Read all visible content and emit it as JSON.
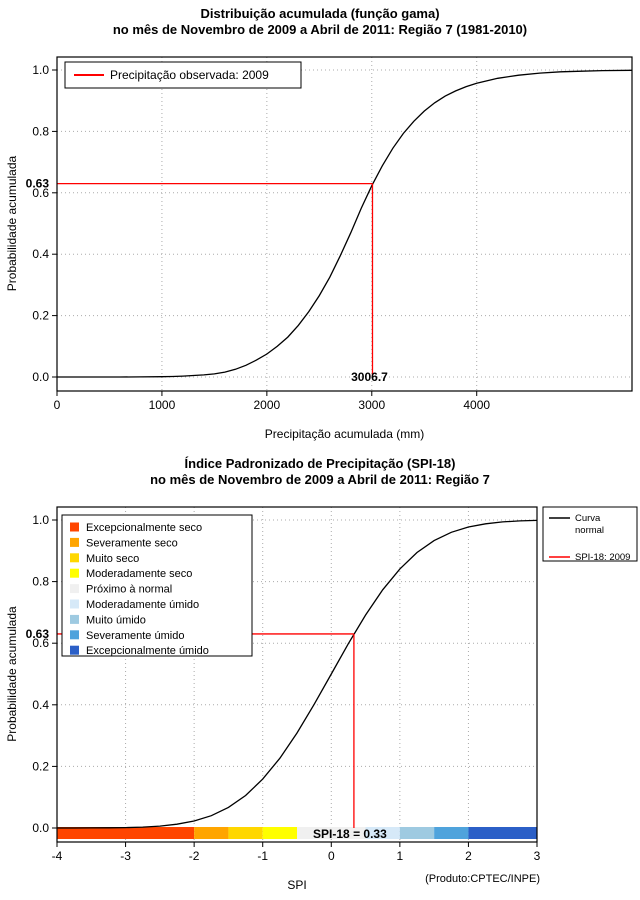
{
  "chart_data": [
    {
      "type": "line",
      "title_line1": "Distribuição acumulada (função gama)",
      "title_line2": "no mês de Novembro de 2009 a Abril de 2011: Região 7 (1981-2010)",
      "xlabel": "Precipitação acumulada (mm)",
      "ylabel": "Probabilidade acumulada",
      "xlim": [
        0,
        5480
      ],
      "ylim": [
        0,
        1
      ],
      "xticks": [
        {
          "v": 0,
          "label": "0"
        },
        {
          "v": 1000,
          "label": "1000"
        },
        {
          "v": 2000,
          "label": "2000"
        },
        {
          "v": 3000,
          "label": "3000"
        },
        {
          "v": 4000,
          "label": "4000"
        }
      ],
      "yticks": [
        {
          "v": 0,
          "label": "0.0"
        },
        {
          "v": 0.2,
          "label": "0.2"
        },
        {
          "v": 0.4,
          "label": "0.4"
        },
        {
          "v": 0.6,
          "label": "0.6"
        },
        {
          "v": 0.8,
          "label": "0.8"
        },
        {
          "v": 1,
          "label": "1.0"
        }
      ],
      "curve_color": "#000000",
      "marker_color": "#ff0000",
      "marker": {
        "x": 3006.7,
        "y": 0.63,
        "x_label": "3006.7",
        "y_label": "0.63"
      },
      "legend": [
        {
          "label": "Precipitação observada: 2009",
          "color": "#ff0000"
        }
      ],
      "curve": {
        "x": [
          0,
          200,
          400,
          600,
          800,
          1000,
          1100,
          1200,
          1300,
          1400,
          1500,
          1600,
          1700,
          1800,
          1900,
          2000,
          2100,
          2200,
          2300,
          2400,
          2500,
          2600,
          2700,
          2800,
          2900,
          3000,
          3100,
          3200,
          3300,
          3400,
          3500,
          3600,
          3700,
          3800,
          3900,
          4000,
          4200,
          4400,
          4600,
          4800,
          5000,
          5200,
          5480
        ],
        "y": [
          0,
          0,
          0,
          0.0001,
          0.0003,
          0.001,
          0.0017,
          0.003,
          0.005,
          0.007,
          0.01,
          0.016,
          0.025,
          0.038,
          0.055,
          0.075,
          0.1,
          0.13,
          0.168,
          0.213,
          0.265,
          0.325,
          0.395,
          0.47,
          0.55,
          0.623,
          0.688,
          0.745,
          0.793,
          0.833,
          0.866,
          0.893,
          0.915,
          0.932,
          0.946,
          0.957,
          0.973,
          0.983,
          0.99,
          0.994,
          0.996,
          0.998,
          0.999
        ]
      }
    },
    {
      "type": "line",
      "title_line1": "Índice Padronizado de Precipitação (SPI-18)",
      "title_line2": "no mês de Novembro de 2009 a Abril de 2011: Região 7",
      "xlabel": "SPI",
      "ylabel": "Probabilidade acumulada",
      "credit": "(Produto:CPTEC/INPE)",
      "annotation": "SPI-18 = 0.33",
      "xlim": [
        -4,
        3
      ],
      "ylim": [
        0,
        1
      ],
      "xticks": [
        {
          "v": -4,
          "label": "-4"
        },
        {
          "v": -3,
          "label": "-3"
        },
        {
          "v": -2,
          "label": "-2"
        },
        {
          "v": -1,
          "label": "-1"
        },
        {
          "v": 0,
          "label": "0"
        },
        {
          "v": 1,
          "label": "1"
        },
        {
          "v": 2,
          "label": "2"
        },
        {
          "v": 3,
          "label": "3"
        }
      ],
      "yticks": [
        {
          "v": 0,
          "label": "0.0"
        },
        {
          "v": 0.2,
          "label": "0.2"
        },
        {
          "v": 0.4,
          "label": "0.4"
        },
        {
          "v": 0.6,
          "label": "0.6"
        },
        {
          "v": 0.8,
          "label": "0.8"
        },
        {
          "v": 1,
          "label": "1.0"
        }
      ],
      "curve_color": "#000000",
      "marker_color": "#ff0000",
      "marker": {
        "x": 0.33,
        "y": 0.63,
        "y_label": "0.63"
      },
      "legend_categories": [
        {
          "label": "Excepcionalmente seco",
          "color": "#FF4500",
          "range": [
            -4,
            -2
          ]
        },
        {
          "label": "Severamente seco",
          "color": "#FFA500",
          "range": [
            -2,
            -1.5
          ]
        },
        {
          "label": "Muito seco",
          "color": "#FFD700",
          "range": [
            -1.5,
            -1
          ]
        },
        {
          "label": "Moderadamente seco",
          "color": "#FFFF00",
          "range": [
            -1,
            -0.5
          ]
        },
        {
          "label": "Próximo à normal",
          "color": "#F0F0F0",
          "range": [
            -0.5,
            0.5
          ]
        },
        {
          "label": "Moderadamente úmido",
          "color": "#D6E9F8",
          "range": [
            0.5,
            1
          ]
        },
        {
          "label": "Muito úmido",
          "color": "#9ECAE1",
          "range": [
            1,
            1.5
          ]
        },
        {
          "label": "Severamente úmido",
          "color": "#4FA3DC",
          "range": [
            1.5,
            2
          ]
        },
        {
          "label": "Excepcionalmente úmido",
          "color": "#2B5FC7",
          "range": [
            2,
            3
          ]
        }
      ],
      "legend_lines": [
        {
          "label": "Curva\nnormal",
          "color": "#000000"
        },
        {
          "label": "SPI-18: 2009",
          "color": "#ff0000"
        }
      ],
      "curve": {
        "x": [
          -4,
          -3.75,
          -3.5,
          -3.25,
          -3,
          -2.75,
          -2.5,
          -2.25,
          -2,
          -1.75,
          -1.5,
          -1.25,
          -1,
          -0.75,
          -0.5,
          -0.25,
          0,
          0.25,
          0.5,
          0.75,
          1,
          1.25,
          1.5,
          1.75,
          2,
          2.25,
          2.5,
          2.75,
          3
        ],
        "y": [
          3e-05,
          9e-05,
          0.00023,
          0.00058,
          0.00135,
          0.00298,
          0.00621,
          0.01222,
          0.02275,
          0.04006,
          0.06681,
          0.10565,
          0.15866,
          0.22663,
          0.30854,
          0.40129,
          0.5,
          0.59871,
          0.69146,
          0.77337,
          0.84134,
          0.89435,
          0.93319,
          0.95994,
          0.97725,
          0.98778,
          0.99379,
          0.99702,
          0.99865
        ]
      }
    }
  ]
}
